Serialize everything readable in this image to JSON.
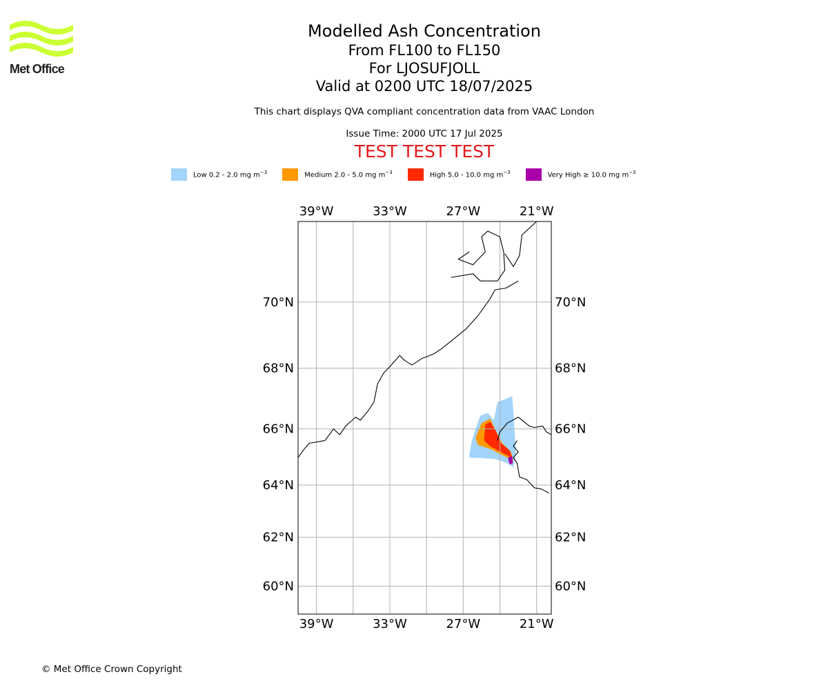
{
  "logo": {
    "text": "Met Office"
  },
  "header": {
    "title": "Modelled Ash Concentration",
    "levels": "From FL100 to FL150",
    "volcano": "For LJOSUFJOLL",
    "valid": "Valid at 0200 UTC 18/07/2025",
    "compliance": "This chart displays QVA compliant concentration data from VAAC London",
    "issue": "Issue Time: 2000 UTC 17 Jul 2025",
    "test_banner": "TEST TEST TEST"
  },
  "legend": [
    {
      "name": "Low",
      "range": "0.2 - 2.0",
      "unit": "mg m",
      "exp": "−3",
      "color": "#a3d4fa"
    },
    {
      "name": "Medium",
      "range": "2.0 - 5.0",
      "unit": "mg m",
      "exp": "−3",
      "color": "#ff9900"
    },
    {
      "name": "High",
      "range": "5.0 - 10.0",
      "unit": "mg m",
      "exp": "−3",
      "color": "#ff2a00"
    },
    {
      "name": "Very High",
      "range": "≥ 10.0",
      "unit": "mg m",
      "exp": "−3",
      "color": "#aa00aa"
    }
  ],
  "map": {
    "lon_range": [
      -40.5,
      -19.8
    ],
    "lat_range": [
      58.8,
      72.2
    ],
    "lon_ticks": [
      {
        "value": -39,
        "label": "39°W"
      },
      {
        "value": -33,
        "label": "33°W"
      },
      {
        "value": -27,
        "label": "27°W"
      },
      {
        "value": -21,
        "label": "21°W"
      }
    ],
    "lat_ticks": [
      {
        "value": 70,
        "label": "70°N"
      },
      {
        "value": 68,
        "label": "68°N"
      },
      {
        "value": 66,
        "label": "66°N"
      },
      {
        "value": 64,
        "label": "64°N"
      },
      {
        "value": 62,
        "label": "62°N"
      },
      {
        "value": 60,
        "label": "60°N"
      }
    ],
    "grid_lons": [
      -39,
      -36,
      -33,
      -30,
      -27,
      -24,
      -21
    ],
    "grid_lats": [
      70,
      68,
      66,
      64,
      62,
      60
    ],
    "coastline_color": "#000000",
    "grid_color": "#b0b0b0",
    "ash_clouds": [
      {
        "level": "Low",
        "color": "#a3d4fa",
        "lonlat": [
          [
            -26.5,
            65.1
          ],
          [
            -26.3,
            65.6
          ],
          [
            -26.0,
            66.0
          ],
          [
            -25.6,
            66.45
          ],
          [
            -25.0,
            66.55
          ],
          [
            -24.5,
            66.3
          ],
          [
            -24.2,
            66.9
          ],
          [
            -23.0,
            67.1
          ],
          [
            -22.9,
            66.6
          ],
          [
            -22.8,
            65.9
          ],
          [
            -22.7,
            65.2
          ],
          [
            -22.9,
            64.65
          ],
          [
            -23.4,
            64.8
          ],
          [
            -24.4,
            64.95
          ],
          [
            -25.5,
            64.98
          ],
          [
            -26.5,
            65.0
          ]
        ]
      },
      {
        "level": "Medium",
        "color": "#ff9900",
        "lonlat": [
          [
            -26.0,
            65.7
          ],
          [
            -25.5,
            66.2
          ],
          [
            -24.8,
            66.35
          ],
          [
            -24.4,
            66.0
          ],
          [
            -23.8,
            65.5
          ],
          [
            -23.1,
            65.2
          ],
          [
            -22.9,
            64.9
          ],
          [
            -23.4,
            65.0
          ],
          [
            -24.8,
            65.3
          ],
          [
            -25.8,
            65.45
          ]
        ]
      },
      {
        "level": "High",
        "color": "#ff2a00",
        "lonlat": [
          [
            -25.2,
            66.15
          ],
          [
            -24.8,
            66.25
          ],
          [
            -24.3,
            65.9
          ],
          [
            -23.9,
            65.5
          ],
          [
            -23.2,
            65.25
          ],
          [
            -23.0,
            65.0
          ],
          [
            -23.5,
            65.1
          ],
          [
            -24.8,
            65.4
          ],
          [
            -25.3,
            65.6
          ]
        ]
      },
      {
        "level": "Very High",
        "color": "#aa00aa",
        "lonlat": [
          [
            -23.35,
            65.0
          ],
          [
            -23.0,
            65.05
          ],
          [
            -22.95,
            64.8
          ],
          [
            -23.2,
            64.75
          ]
        ]
      }
    ],
    "coastlines": [
      {
        "name": "greenland-east-coast",
        "lonlat": [
          [
            -40.5,
            65.0
          ],
          [
            -40.0,
            65.3
          ],
          [
            -39.6,
            65.5
          ],
          [
            -38.3,
            65.6
          ],
          [
            -37.6,
            66.0
          ],
          [
            -37.1,
            65.8
          ],
          [
            -36.6,
            66.1
          ],
          [
            -35.8,
            66.4
          ],
          [
            -35.4,
            66.3
          ],
          [
            -34.8,
            66.6
          ],
          [
            -34.3,
            66.9
          ],
          [
            -34.0,
            67.5
          ],
          [
            -33.5,
            67.85
          ],
          [
            -33.0,
            68.05
          ],
          [
            -32.2,
            68.4
          ],
          [
            -31.8,
            68.25
          ],
          [
            -31.2,
            68.1
          ],
          [
            -30.4,
            68.3
          ],
          [
            -29.4,
            68.45
          ],
          [
            -28.8,
            68.6
          ],
          [
            -27.8,
            68.9
          ],
          [
            -26.8,
            69.2
          ],
          [
            -25.8,
            69.6
          ],
          [
            -25.2,
            69.9
          ],
          [
            -24.8,
            70.1
          ],
          [
            -24.4,
            70.35
          ],
          [
            -23.5,
            70.4
          ],
          [
            -22.5,
            70.6
          ]
        ]
      },
      {
        "name": "scoresby-sund",
        "lonlat": [
          [
            -28.0,
            70.7
          ],
          [
            -26.2,
            70.8
          ],
          [
            -25.6,
            70.6
          ],
          [
            -24.2,
            70.6
          ],
          [
            -23.6,
            70.9
          ],
          [
            -23.7,
            71.4
          ],
          [
            -24.0,
            71.8
          ],
          [
            -25.0,
            71.95
          ],
          [
            -25.5,
            71.8
          ],
          [
            -25.2,
            71.4
          ],
          [
            -26.2,
            71.05
          ],
          [
            -27.4,
            71.2
          ],
          [
            -26.5,
            71.4
          ]
        ]
      },
      {
        "name": "greenland-northeast",
        "lonlat": [
          [
            -23.6,
            71.35
          ],
          [
            -22.9,
            71.0
          ],
          [
            -22.4,
            71.3
          ],
          [
            -22.2,
            71.85
          ],
          [
            -21.0,
            72.2
          ]
        ]
      },
      {
        "name": "iceland-west",
        "lonlat": [
          [
            -22.6,
            65.6
          ],
          [
            -22.9,
            65.4
          ],
          [
            -22.5,
            65.2
          ],
          [
            -22.9,
            65.0
          ],
          [
            -22.6,
            64.8
          ],
          [
            -22.4,
            64.3
          ],
          [
            -21.8,
            64.2
          ],
          [
            -21.2,
            63.9
          ],
          [
            -20.6,
            63.85
          ],
          [
            -20.0,
            63.7
          ]
        ]
      },
      {
        "name": "iceland-westfjords",
        "lonlat": [
          [
            -24.2,
            65.6
          ],
          [
            -24.0,
            65.9
          ],
          [
            -23.4,
            66.2
          ],
          [
            -22.5,
            66.4
          ],
          [
            -21.6,
            66.1
          ],
          [
            -21.2,
            66.05
          ],
          [
            -20.5,
            66.1
          ],
          [
            -20.2,
            65.9
          ],
          [
            -19.8,
            65.8
          ]
        ]
      }
    ]
  }
}
